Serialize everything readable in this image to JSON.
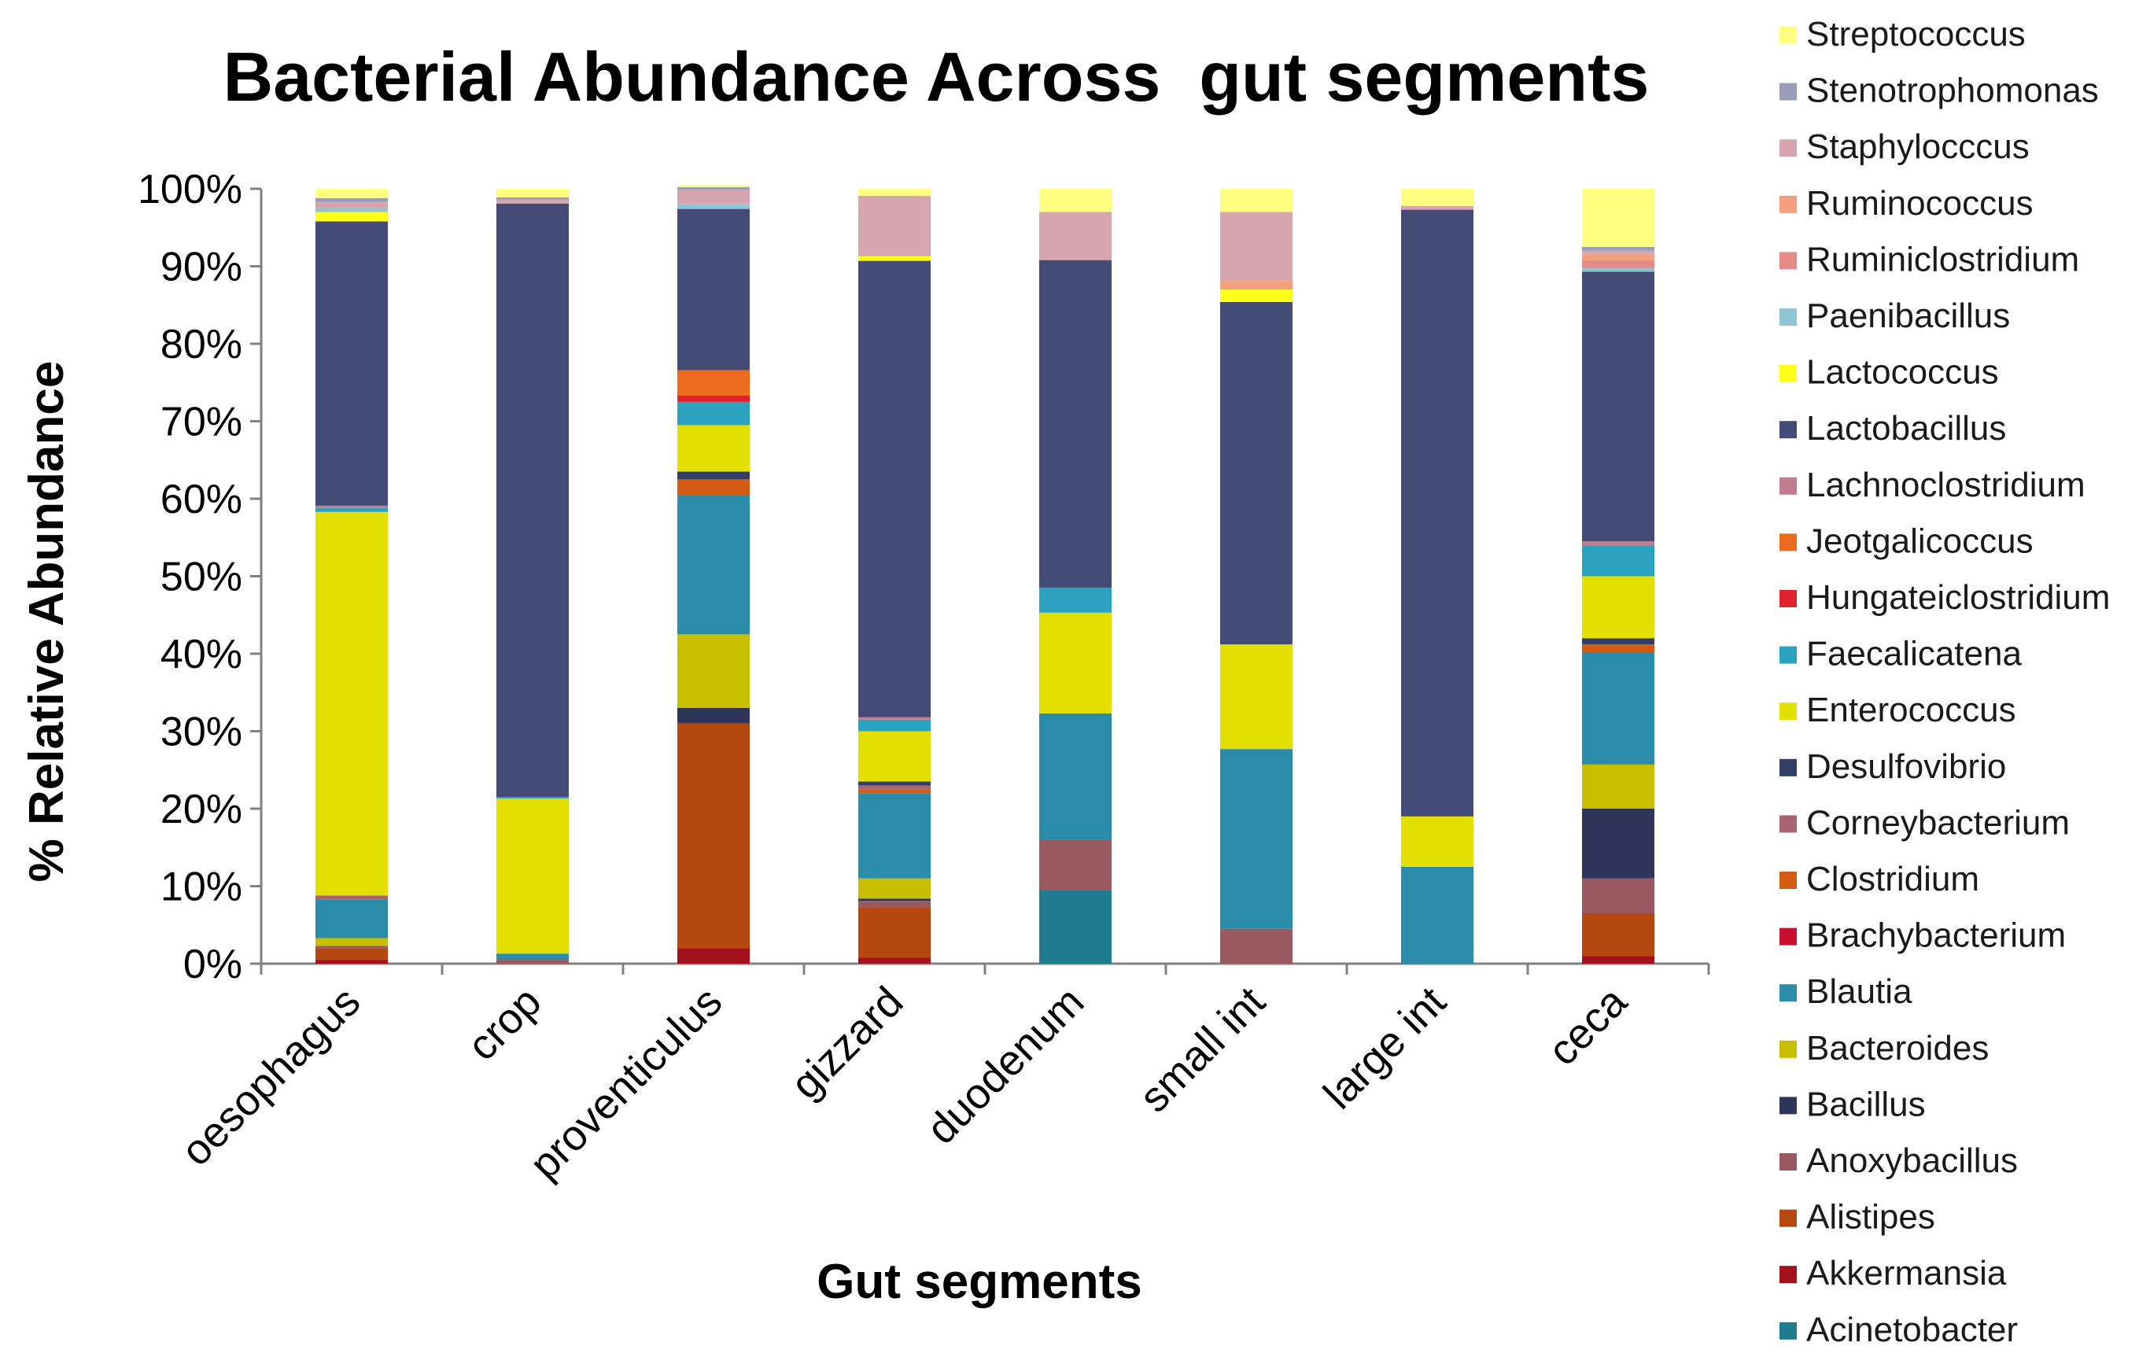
{
  "chart_data": {
    "type": "bar",
    "stacked": true,
    "title": "Bacterial Abundance Across  gut segments",
    "xlabel": "Gut segments",
    "ylabel": "% Relative Abundance",
    "ylim": [
      0,
      100
    ],
    "yticks": [
      "0%",
      "10%",
      "20%",
      "30%",
      "40%",
      "50%",
      "60%",
      "70%",
      "80%",
      "90%",
      "100%"
    ],
    "grid": false,
    "legend_position": "right",
    "categories": [
      "oesophagus",
      "crop",
      "proventiculus",
      "gizzard",
      "duodenum",
      "small int",
      "large int",
      "ceca"
    ],
    "series": [
      {
        "name": "Acinetobacter",
        "color": "#1f7b8e",
        "values": [
          0,
          0,
          0,
          0,
          9.5,
          0,
          0,
          0
        ]
      },
      {
        "name": "Akkermansia",
        "color": "#a3121c",
        "values": [
          0.5,
          0,
          2,
          0.8,
          0,
          0,
          0,
          1
        ]
      },
      {
        "name": "Alistipes",
        "color": "#b5480f",
        "values": [
          1.5,
          0,
          29,
          6.5,
          0,
          0,
          0,
          5.5
        ]
      },
      {
        "name": "Anoxybacillus",
        "color": "#9a5861",
        "values": [
          0.3,
          0.5,
          0,
          0.8,
          6.5,
          4.5,
          0,
          4.5
        ]
      },
      {
        "name": "Bacillus",
        "color": "#2e3558",
        "values": [
          0,
          0,
          2,
          0.3,
          0,
          0,
          0,
          9
        ]
      },
      {
        "name": "Bacteroides",
        "color": "#c7bf00",
        "values": [
          1,
          0,
          9.5,
          2.6,
          0,
          0,
          0,
          5.7
        ]
      },
      {
        "name": "Blautia",
        "color": "#2a8ca8",
        "values": [
          5,
          0.8,
          18,
          11,
          16.3,
          23.2,
          12.5,
          14.5
        ]
      },
      {
        "name": "Brachybacterium",
        "color": "#c8102e",
        "values": [
          0,
          0,
          0,
          0,
          0,
          0,
          0,
          0
        ]
      },
      {
        "name": "Clostridium",
        "color": "#d35b14",
        "values": [
          0,
          0,
          2,
          0.5,
          0,
          0,
          0,
          1
        ]
      },
      {
        "name": "Corneybacterium",
        "color": "#a86470",
        "values": [
          0.5,
          0,
          0,
          0.5,
          0,
          0,
          0,
          0
        ]
      },
      {
        "name": "Desulfovibrio",
        "color": "#323e63",
        "values": [
          0,
          0,
          1,
          0.5,
          0,
          0,
          0,
          0.8
        ]
      },
      {
        "name": "Enterococcus",
        "color": "#e3df00",
        "values": [
          49.5,
          20,
          6,
          6.5,
          13,
          13.5,
          6.5,
          8
        ]
      },
      {
        "name": "Faecalicatena",
        "color": "#2ba3c0",
        "values": [
          0.5,
          0.2,
          3,
          1.5,
          3.2,
          0,
          0,
          4
        ]
      },
      {
        "name": "Hungateiclostridium",
        "color": "#e0212e",
        "values": [
          0,
          0,
          0.8,
          0,
          0,
          0,
          0,
          0
        ]
      },
      {
        "name": "Jeotgalicoccus",
        "color": "#ec6b1e",
        "values": [
          0,
          0,
          3.3,
          0,
          0,
          0,
          0,
          0
        ]
      },
      {
        "name": "Lachnoclostridium",
        "color": "#c27b8f",
        "values": [
          0.3,
          0,
          0,
          0.3,
          0,
          0,
          0,
          0.5
        ]
      },
      {
        "name": "Lactobacillus",
        "color": "#454b77",
        "values": [
          36.7,
          76.6,
          20.8,
          58.9,
          42.3,
          44.2,
          78.3,
          34.8
        ]
      },
      {
        "name": "Lactococcus",
        "color": "#ffff1a",
        "values": [
          1.2,
          0,
          0,
          0.6,
          0,
          1.6,
          0,
          0
        ]
      },
      {
        "name": "Paenibacillus",
        "color": "#8fc4d2",
        "values": [
          0.5,
          0,
          0.6,
          0,
          0,
          0,
          0,
          0.5
        ]
      },
      {
        "name": "Ruminiclostridium",
        "color": "#e68a8a",
        "values": [
          0,
          0,
          0,
          0,
          0,
          0,
          0,
          1
        ]
      },
      {
        "name": "Ruminococcus",
        "color": "#f4a07e",
        "values": [
          0,
          0,
          0,
          0,
          0,
          1.2,
          0,
          0.8
        ]
      },
      {
        "name": "Staphylocccus",
        "color": "#d6a5af",
        "values": [
          0.8,
          0.5,
          1.9,
          7.8,
          6.2,
          8.8,
          0.5,
          0.4
        ]
      },
      {
        "name": "Stenotrophomonas",
        "color": "#9b9cb8",
        "values": [
          0.5,
          0.3,
          0.3,
          0,
          0,
          0,
          0,
          0.5
        ]
      },
      {
        "name": "Streptococcus",
        "color": "#ffff80",
        "values": [
          1.2,
          1.1,
          0.3,
          0.9,
          3,
          3,
          2.2,
          7.5
        ]
      }
    ]
  }
}
